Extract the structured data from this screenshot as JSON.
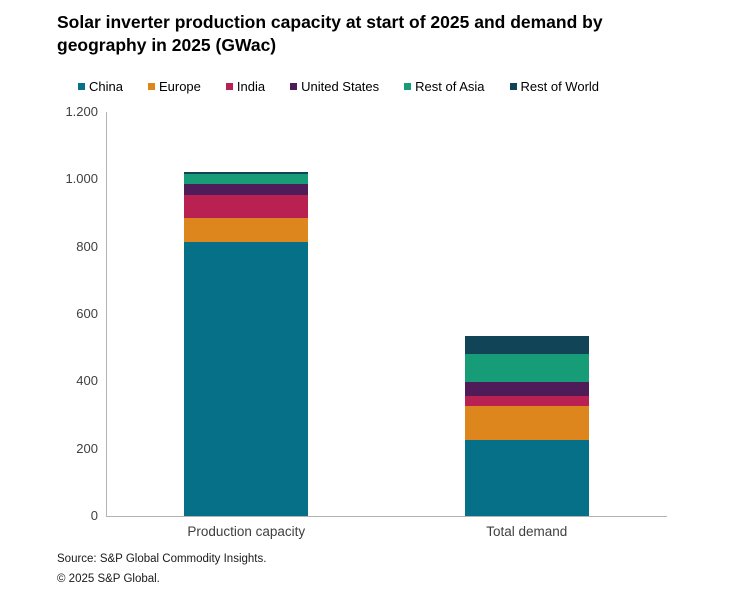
{
  "title": "Solar inverter production capacity at start of 2025 and demand by geography in 2025 (GWac)",
  "legend": {
    "items": [
      {
        "label": "China",
        "color": "#077089"
      },
      {
        "label": "Europe",
        "color": "#de861e"
      },
      {
        "label": "India",
        "color": "#ba2153"
      },
      {
        "label": "United States",
        "color": "#4f1b58"
      },
      {
        "label": "Rest of Asia",
        "color": "#169d77"
      },
      {
        "label": "Rest of World",
        "color": "#114457"
      }
    ]
  },
  "chart_data": {
    "type": "bar",
    "stacked": true,
    "title": "Solar inverter production capacity at start of 2025 and demand by geography in 2025 (GWac)",
    "categories": [
      "Production capacity",
      "Total demand"
    ],
    "series": [
      {
        "name": "China",
        "color": "#077089",
        "values": [
          815,
          227
        ]
      },
      {
        "name": "Europe",
        "color": "#de861e",
        "values": [
          71,
          100
        ]
      },
      {
        "name": "India",
        "color": "#ba2153",
        "values": [
          68,
          30
        ]
      },
      {
        "name": "United States",
        "color": "#4f1b58",
        "values": [
          33,
          42
        ]
      },
      {
        "name": "Rest of Asia",
        "color": "#169d77",
        "values": [
          30,
          81
        ]
      },
      {
        "name": "Rest of World",
        "color": "#114457",
        "values": [
          5,
          55
        ]
      }
    ],
    "totals": [
      1022,
      535
    ],
    "xlabel": "",
    "ylabel": "",
    "ylim": [
      0,
      1200
    ],
    "yticks": [
      {
        "value": 0,
        "label": "0"
      },
      {
        "value": 200,
        "label": "200"
      },
      {
        "value": 400,
        "label": "400"
      },
      {
        "value": 600,
        "label": "600"
      },
      {
        "value": 800,
        "label": "800"
      },
      {
        "value": 1000,
        "label": "1.000"
      },
      {
        "value": 1200,
        "label": "1.200"
      }
    ],
    "grid": false,
    "legend_position": "top"
  },
  "source": {
    "line1": "Source: S&P Global Commodity Insights.",
    "line2": "© 2025 S&P Global."
  }
}
